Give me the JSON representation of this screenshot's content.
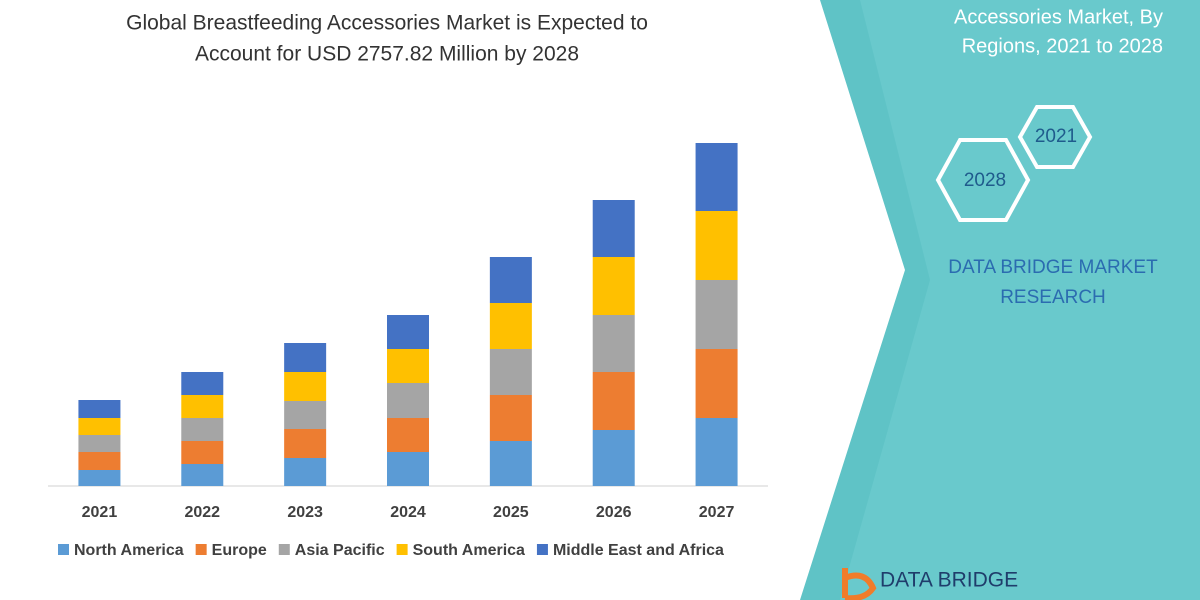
{
  "chart_data": {
    "type": "stacked_bar",
    "title": [
      "Global Breastfeeding Accessories Market is Expected to",
      "Account for USD 2757.82 Million by 2028"
    ],
    "categories": [
      "2021",
      "2022",
      "2023",
      "2024",
      "2025",
      "2026",
      "2027"
    ],
    "series": [
      {
        "name": "North America",
        "color": "#5b9bd5",
        "values": [
          16,
          22,
          28,
          34,
          45,
          56,
          68
        ]
      },
      {
        "name": "Europe",
        "color": "#ed7d31",
        "values": [
          18,
          23,
          29,
          34,
          46,
          58,
          69
        ]
      },
      {
        "name": "Asia Pacific",
        "color": "#a5a5a5",
        "values": [
          17,
          23,
          28,
          35,
          46,
          57,
          69
        ]
      },
      {
        "name": "South America",
        "color": "#ffc000",
        "values": [
          17,
          23,
          29,
          34,
          46,
          58,
          69
        ]
      },
      {
        "name": "Middle East and Africa",
        "color": "#4472c4",
        "values": [
          18,
          23,
          29,
          34,
          46,
          57,
          68
        ]
      }
    ],
    "ylim": [
      0,
      350
    ],
    "legend": "bottom"
  },
  "panel": {
    "heading": [
      "Accessories Market, By",
      "Regions, 2021 to 2028"
    ],
    "hexagons": [
      "2021",
      "2028"
    ],
    "brand": [
      "DATA BRIDGE MARKET",
      "RESEARCH"
    ],
    "logo": "DATA BRIDGE"
  }
}
